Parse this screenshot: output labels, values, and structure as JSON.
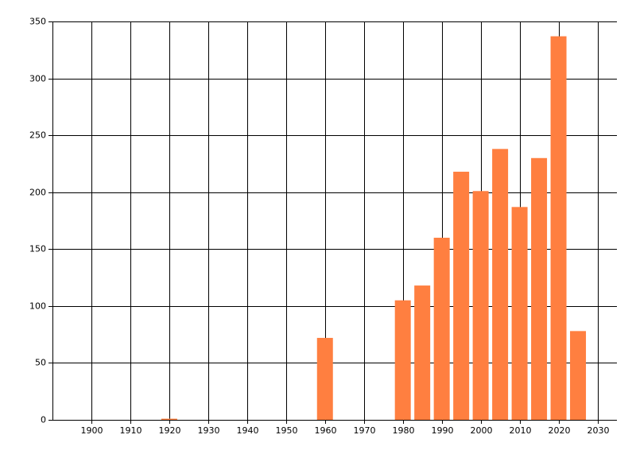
{
  "chart_data": {
    "type": "bar",
    "x": [
      1920,
      1960,
      1980,
      1985,
      1990,
      1995,
      2000,
      2005,
      2010,
      2015,
      2020,
      2025
    ],
    "values": [
      1,
      72,
      105,
      118,
      160,
      218,
      201,
      238,
      187,
      230,
      337,
      78
    ],
    "color": "#ff7f40",
    "xlim": [
      1890,
      2035
    ],
    "xticks": [
      1900,
      1910,
      1920,
      1930,
      1940,
      1950,
      1960,
      1970,
      1980,
      1990,
      2000,
      2010,
      2020,
      2030
    ],
    "ylim": [
      0,
      350
    ],
    "yticks": [
      0,
      50,
      100,
      150,
      200,
      250,
      300,
      350
    ],
    "grid": true
  }
}
